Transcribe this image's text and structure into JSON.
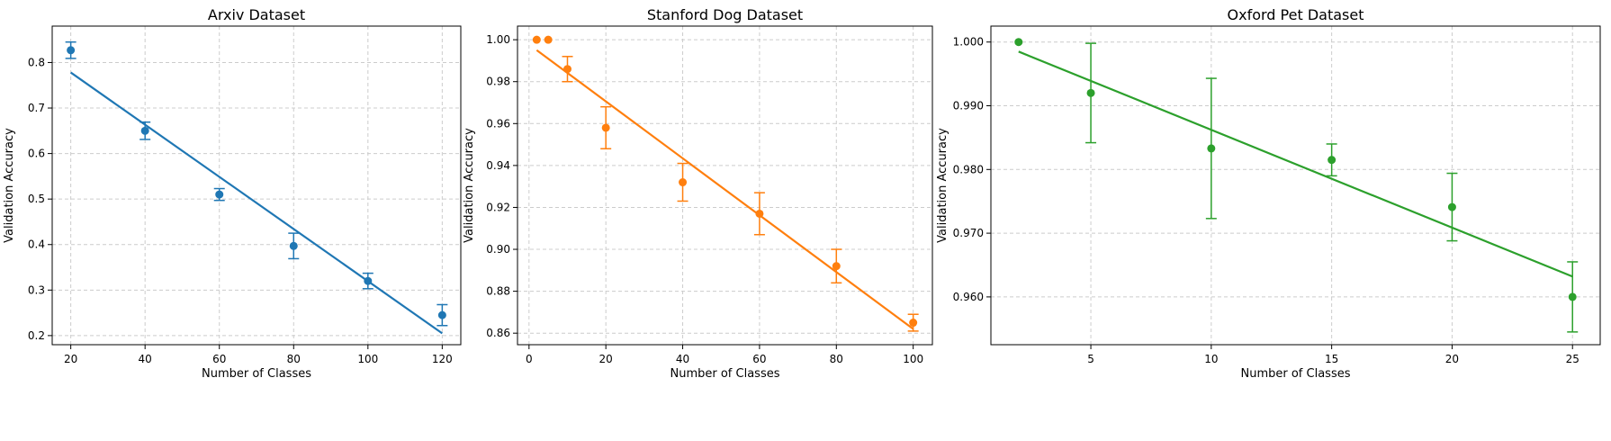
{
  "chart_data": [
    {
      "type": "scatter",
      "title": "Arxiv Dataset",
      "xlabel": "Number of Classes",
      "ylabel": "Validation Accuracy",
      "xlim": [
        15,
        125
      ],
      "ylim": [
        0.18,
        0.88
      ],
      "xticks": [
        20,
        40,
        60,
        80,
        100,
        120
      ],
      "yticks": [
        0.2,
        0.3,
        0.4,
        0.5,
        0.6,
        0.7,
        0.8
      ],
      "xtick_labels": [
        "20",
        "40",
        "60",
        "80",
        "100",
        "120"
      ],
      "ytick_labels": [
        "0.2",
        "0.3",
        "0.4",
        "0.5",
        "0.6",
        "0.7",
        "0.8"
      ],
      "grid": true,
      "color": "#1f77b4",
      "points": [
        {
          "x": 20,
          "y": 0.827,
          "err": 0.018
        },
        {
          "x": 40,
          "y": 0.65,
          "err": 0.019
        },
        {
          "x": 60,
          "y": 0.51,
          "err": 0.013
        },
        {
          "x": 80,
          "y": 0.397,
          "err": 0.028
        },
        {
          "x": 100,
          "y": 0.32,
          "err": 0.017
        },
        {
          "x": 120,
          "y": 0.245,
          "err": 0.023
        }
      ],
      "fit_line": [
        [
          20,
          0.778
        ],
        [
          120,
          0.205
        ]
      ]
    },
    {
      "type": "scatter",
      "title": "Stanford Dog Dataset",
      "xlabel": "Number of Classes",
      "ylabel": "Validation Accuracy",
      "xlim": [
        -3,
        105
      ],
      "ylim": [
        0.8545,
        1.0065
      ],
      "xticks": [
        0,
        20,
        40,
        60,
        80,
        100
      ],
      "yticks": [
        0.86,
        0.88,
        0.9,
        0.92,
        0.94,
        0.96,
        0.98,
        1.0
      ],
      "xtick_labels": [
        "0",
        "20",
        "40",
        "60",
        "80",
        "100"
      ],
      "ytick_labels": [
        "0.86",
        "0.88",
        "0.90",
        "0.92",
        "0.94",
        "0.96",
        "0.98",
        "1.00"
      ],
      "grid": true,
      "color": "#ff7f0e",
      "points": [
        {
          "x": 2,
          "y": 1.0,
          "err": 0
        },
        {
          "x": 5,
          "y": 1.0,
          "err": 0
        },
        {
          "x": 10,
          "y": 0.986,
          "err": 0.006
        },
        {
          "x": 20,
          "y": 0.958,
          "err": 0.01
        },
        {
          "x": 40,
          "y": 0.932,
          "err": 0.009
        },
        {
          "x": 60,
          "y": 0.917,
          "err": 0.01
        },
        {
          "x": 80,
          "y": 0.892,
          "err": 0.008
        },
        {
          "x": 100,
          "y": 0.865,
          "err": 0.004
        }
      ],
      "fit_line": [
        [
          2,
          0.995
        ],
        [
          100,
          0.862
        ]
      ]
    },
    {
      "type": "scatter",
      "title": "Oxford Pet Dataset",
      "xlabel": "Number of Classes",
      "ylabel": "Validation Accuracy",
      "xlim": [
        0.85,
        26.15
      ],
      "ylim": [
        0.9525,
        1.0025
      ],
      "xticks": [
        5,
        10,
        15,
        20,
        25
      ],
      "yticks": [
        0.96,
        0.97,
        0.98,
        0.99,
        1.0
      ],
      "xtick_labels": [
        "5",
        "10",
        "15",
        "20",
        "25"
      ],
      "ytick_labels": [
        "0.960",
        "0.970",
        "0.980",
        "0.990",
        "1.000"
      ],
      "grid": true,
      "color": "#2ca02c",
      "points": [
        {
          "x": 2,
          "y": 1.0,
          "err": 0
        },
        {
          "x": 5,
          "y": 0.992,
          "err": 0.0078
        },
        {
          "x": 10,
          "y": 0.9833,
          "err": 0.011
        },
        {
          "x": 15,
          "y": 0.9815,
          "err": 0.0025
        },
        {
          "x": 20,
          "y": 0.9741,
          "err": 0.0053
        },
        {
          "x": 25,
          "y": 0.96,
          "err": 0.0055
        }
      ],
      "fit_line": [
        [
          2,
          0.9985
        ],
        [
          25,
          0.9632
        ]
      ]
    }
  ]
}
